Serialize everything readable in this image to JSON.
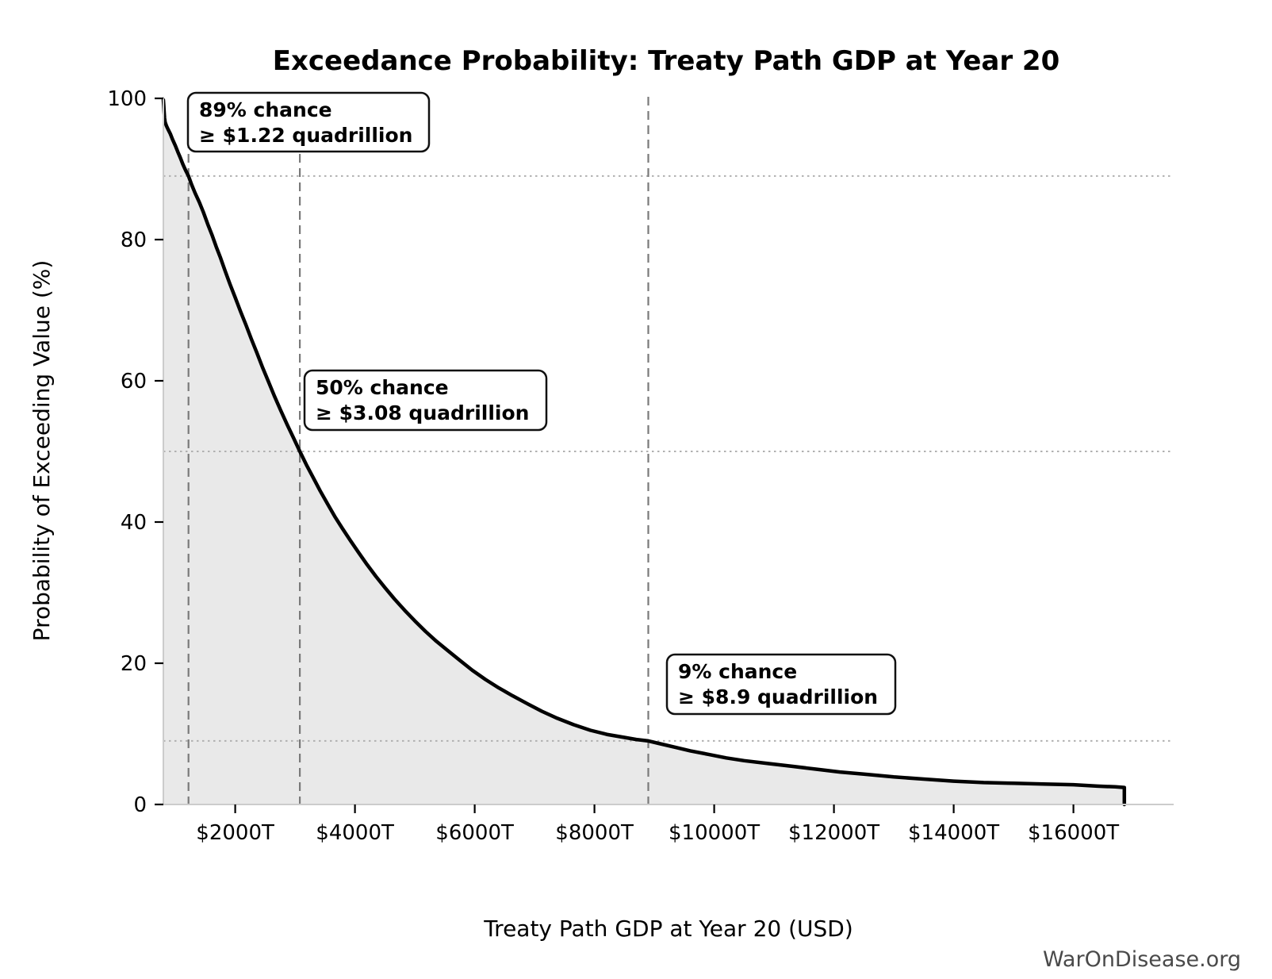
{
  "title": "Exceedance Probability: Treaty Path GDP at Year 20",
  "watermark": "WarOnDisease.org",
  "chart_data": {
    "type": "line",
    "title": "Exceedance Probability: Treaty Path GDP at Year 20",
    "xlabel": "Treaty Path GDP at Year 20 (USD)",
    "ylabel": "Probability of Exceeding Value (%)",
    "x_unit": "trillions of USD",
    "xlim": [
      800,
      17660
    ],
    "ylim": [
      0,
      100
    ],
    "grid": "reference lines only",
    "legend": "none",
    "x_tick_values": [
      2000,
      4000,
      6000,
      8000,
      10000,
      12000,
      14000,
      16000
    ],
    "x_tick_labels": [
      "$2000T",
      "$4000T",
      "$6000T",
      "$8000T",
      "$10000T",
      "$12000T",
      "$14000T",
      "$16000T"
    ],
    "y_tick_values": [
      0,
      20,
      40,
      60,
      80,
      100
    ],
    "y_tick_labels": [
      "0",
      "20",
      "40",
      "60",
      "80",
      "100"
    ],
    "series": [
      {
        "name": "exceedance-probability-curve",
        "fill_under_curve": true,
        "points": [
          [
            800,
            99.8
          ],
          [
            806,
            99.0
          ],
          [
            812,
            98.2
          ],
          [
            820,
            97.2
          ],
          [
            830,
            96.6
          ],
          [
            852,
            96.1
          ],
          [
            880,
            95.6
          ],
          [
            915,
            95.0
          ],
          [
            952,
            94.2
          ],
          [
            1000,
            93.3
          ],
          [
            1042,
            92.4
          ],
          [
            1084,
            91.6
          ],
          [
            1125,
            90.7
          ],
          [
            1172,
            89.8
          ],
          [
            1220,
            89.0
          ],
          [
            1272,
            87.8
          ],
          [
            1330,
            86.6
          ],
          [
            1400,
            85.3
          ],
          [
            1468,
            83.9
          ],
          [
            1540,
            82.2
          ],
          [
            1610,
            80.7
          ],
          [
            1682,
            79.0
          ],
          [
            1755,
            77.4
          ],
          [
            1830,
            75.6
          ],
          [
            1912,
            73.7
          ],
          [
            2000,
            71.8
          ],
          [
            2090,
            69.8
          ],
          [
            2180,
            67.9
          ],
          [
            2270,
            65.9
          ],
          [
            2360,
            64.0
          ],
          [
            2452,
            62.0
          ],
          [
            2550,
            60.0
          ],
          [
            2652,
            57.9
          ],
          [
            2760,
            55.8
          ],
          [
            2868,
            53.8
          ],
          [
            2975,
            51.9
          ],
          [
            3080,
            50.0
          ],
          [
            3190,
            48.1
          ],
          [
            3302,
            46.3
          ],
          [
            3420,
            44.4
          ],
          [
            3540,
            42.6
          ],
          [
            3662,
            40.8
          ],
          [
            3790,
            39.1
          ],
          [
            3922,
            37.4
          ],
          [
            4060,
            35.7
          ],
          [
            4200,
            34.0
          ],
          [
            4350,
            32.3
          ],
          [
            4502,
            30.7
          ],
          [
            4660,
            29.1
          ],
          [
            4830,
            27.5
          ],
          [
            5000,
            26.0
          ],
          [
            5180,
            24.5
          ],
          [
            5362,
            23.1
          ],
          [
            5550,
            21.8
          ],
          [
            5752,
            20.4
          ],
          [
            5960,
            19.0
          ],
          [
            6180,
            17.7
          ],
          [
            6402,
            16.5
          ],
          [
            6630,
            15.4
          ],
          [
            6872,
            14.3
          ],
          [
            7120,
            13.2
          ],
          [
            7380,
            12.2
          ],
          [
            7650,
            11.3
          ],
          [
            7932,
            10.5
          ],
          [
            8220,
            9.9
          ],
          [
            8500,
            9.5
          ],
          [
            8700,
            9.2
          ],
          [
            8900,
            9.0
          ],
          [
            9100,
            8.6
          ],
          [
            9350,
            8.1
          ],
          [
            9600,
            7.6
          ],
          [
            9900,
            7.1
          ],
          [
            10200,
            6.6
          ],
          [
            10500,
            6.2
          ],
          [
            10900,
            5.8
          ],
          [
            11300,
            5.4
          ],
          [
            11700,
            5.0
          ],
          [
            12100,
            4.6
          ],
          [
            12500,
            4.3
          ],
          [
            13000,
            3.9
          ],
          [
            13500,
            3.6
          ],
          [
            14000,
            3.3
          ],
          [
            14500,
            3.1
          ],
          [
            15000,
            3.0
          ],
          [
            15500,
            2.9
          ],
          [
            16000,
            2.8
          ],
          [
            16400,
            2.6
          ],
          [
            16700,
            2.5
          ],
          [
            16850,
            2.4
          ],
          [
            16850,
            0
          ]
        ]
      }
    ],
    "reference_lines": {
      "vertical_dashed_x": [
        1220,
        3080,
        8900
      ],
      "horizontal_dotted_y": [
        89,
        50,
        9
      ]
    },
    "annotations": [
      {
        "x": 1220,
        "y": 89,
        "lines": [
          "89% chance",
          "≥ $1.22 quadrillion"
        ]
      },
      {
        "x": 3080,
        "y": 50,
        "lines": [
          "50% chance",
          "≥ $3.08 quadrillion"
        ]
      },
      {
        "x": 8900,
        "y": 9,
        "lines": [
          "9% chance",
          "≥ $8.9 quadrillion"
        ]
      }
    ],
    "colors": {
      "curve": "#000000",
      "area_fill": "#e9e9e9",
      "dashed_reference": "#7a7a7a",
      "dotted_reference": "#b0b0b0",
      "spine": "#cccccc",
      "tick_mark": "#000000",
      "annotation_border": "#111111",
      "watermark": "#4a4a4a",
      "background": "#ffffff"
    }
  }
}
